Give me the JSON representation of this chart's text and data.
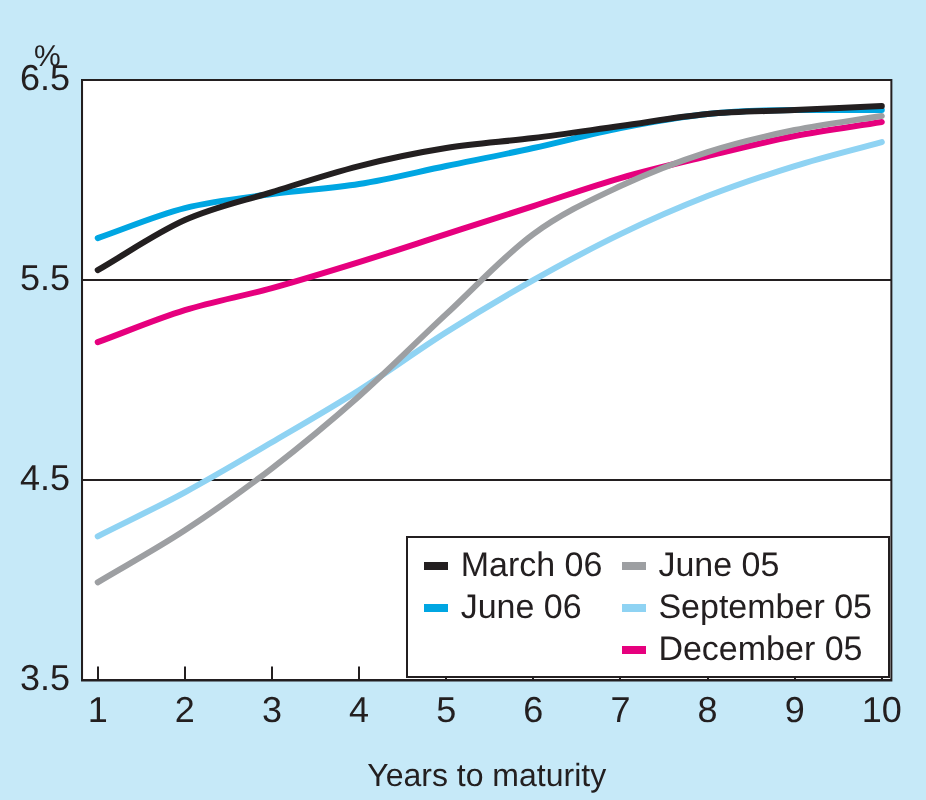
{
  "chart_data": {
    "type": "line",
    "ylabel": "%",
    "xlabel": "Years to maturity",
    "x": [
      1,
      2,
      3,
      4,
      5,
      6,
      7,
      8,
      9,
      10
    ],
    "xlim": [
      0.82,
      10.11
    ],
    "xticks": [
      1,
      2,
      3,
      4,
      5,
      6,
      7,
      8,
      9,
      10
    ],
    "ylim": [
      3.5,
      6.5
    ],
    "yticks": [
      3.5,
      4.5,
      5.5,
      6.5
    ],
    "grid": "y",
    "legend": "bottom right",
    "marker": "none",
    "line_style": "solid",
    "series": [
      {
        "name": "March 06",
        "color": "#231f20",
        "values": [
          5.55,
          5.8,
          5.94,
          6.07,
          6.16,
          6.21,
          6.27,
          6.33,
          6.35,
          6.37
        ]
      },
      {
        "name": "June 06",
        "color": "#00a6e2",
        "values": [
          5.71,
          5.86,
          5.93,
          5.98,
          6.07,
          6.16,
          6.26,
          6.33,
          6.35,
          6.35
        ]
      },
      {
        "name": "June 05",
        "color": "#9d9fa2",
        "values": [
          3.99,
          4.25,
          4.56,
          4.92,
          5.33,
          5.73,
          5.97,
          6.14,
          6.25,
          6.32
        ]
      },
      {
        "name": "September 05",
        "color": "#8fd3f3",
        "values": [
          4.22,
          4.44,
          4.69,
          4.95,
          5.24,
          5.5,
          5.73,
          5.92,
          6.07,
          6.19
        ]
      },
      {
        "name": "December 05",
        "color": "#e6007e",
        "values": [
          5.19,
          5.35,
          5.46,
          5.59,
          5.73,
          5.87,
          6.01,
          6.12,
          6.22,
          6.29
        ]
      }
    ]
  }
}
